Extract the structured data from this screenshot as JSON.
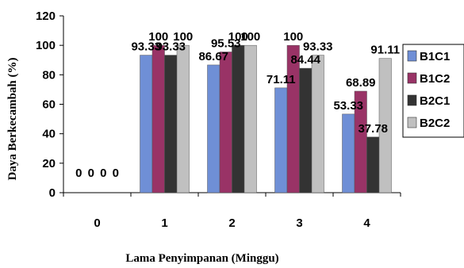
{
  "chart_data": {
    "type": "bar",
    "xlabel": "Lama Penyimpanan (Minggu)",
    "ylabel": "Daya Berkecambah (%)",
    "ylim": [
      0,
      120
    ],
    "yticks": [
      0,
      20,
      40,
      60,
      80,
      100,
      120
    ],
    "categories": [
      "0",
      "1",
      "2",
      "3",
      "4"
    ],
    "series": [
      {
        "name": "B1C1",
        "color": "#6F8FD6",
        "values": [
          0,
          93.33,
          86.67,
          71.11,
          53.33
        ],
        "labels": [
          "0",
          "93.33",
          "86.67",
          "71.11",
          "53.33"
        ]
      },
      {
        "name": "B1C2",
        "color": "#993366",
        "values": [
          0,
          100,
          95.53,
          100,
          68.89
        ],
        "labels": [
          "0",
          "100",
          "95.53",
          "100",
          "68.89"
        ]
      },
      {
        "name": "B2C1",
        "color": "#333333",
        "values": [
          0,
          93.33,
          100,
          84.44,
          37.78
        ],
        "labels": [
          "0",
          "93.33",
          "100",
          "84.44",
          "37.78"
        ]
      },
      {
        "name": "B2C2",
        "color": "#C0C0C0",
        "values": [
          0,
          100,
          100,
          93.33,
          91.11
        ],
        "labels": [
          "0",
          "100",
          "100",
          "93.33",
          "91.11"
        ]
      }
    ],
    "legend": "right",
    "grid": false
  }
}
